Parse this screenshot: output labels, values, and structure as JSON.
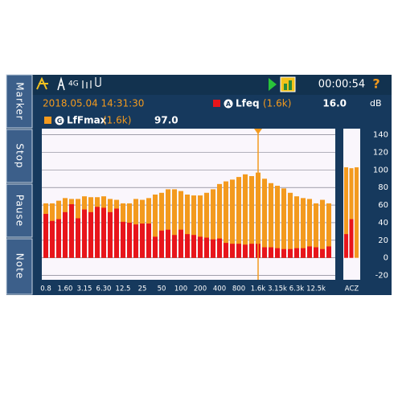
{
  "sidebar": {
    "buttons": [
      "Marker",
      "Stop",
      "Pause",
      "Note"
    ]
  },
  "status": {
    "network": "4G",
    "elapsed": "00:00:54",
    "help": "?"
  },
  "readout": {
    "datetime": "2018.05.04 14:31:30",
    "rows": [
      {
        "weighting": "A",
        "name": "Lfeq",
        "band": "(1.6k)",
        "value": "16.0",
        "unit": "dB"
      },
      {
        "weighting": "G",
        "name": "LfFmax",
        "band": "(1.6k)",
        "value": "97.0"
      }
    ]
  },
  "chart_data": [
    {
      "type": "bar",
      "cursor": "1.6k",
      "categories": [
        "0.8",
        null,
        null,
        "1.60",
        null,
        null,
        "3.15",
        null,
        null,
        "6.30",
        null,
        null,
        "12.5",
        null,
        null,
        "25",
        null,
        null,
        "50",
        null,
        null,
        "100",
        null,
        null,
        "200",
        null,
        null,
        "400",
        null,
        null,
        "800",
        null,
        null,
        "1.6k",
        null,
        null,
        "3.15k",
        null,
        null,
        "6.3k",
        null,
        null,
        "12.5k",
        null,
        null
      ],
      "series": [
        {
          "name": "LfFmax",
          "color": "#f39a1e",
          "values": [
            62,
            62,
            65,
            68,
            67,
            67,
            70,
            69,
            69,
            70,
            67,
            66,
            62,
            62,
            67,
            66,
            68,
            72,
            74,
            78,
            78,
            76,
            72,
            71,
            71,
            74,
            78,
            84,
            87,
            89,
            92,
            95,
            93,
            97,
            90,
            85,
            82,
            79,
            74,
            70,
            68,
            67,
            62,
            66,
            62
          ]
        },
        {
          "name": "Lfeq",
          "color": "#e8151b",
          "values": [
            50,
            42,
            44,
            52,
            61,
            45,
            55,
            52,
            58,
            57,
            52,
            56,
            41,
            40,
            38,
            39,
            39,
            24,
            31,
            32,
            26,
            32,
            27,
            26,
            24,
            23,
            21,
            22,
            17,
            16,
            16,
            15,
            16,
            16,
            12,
            12,
            11,
            10,
            10,
            11,
            11,
            13,
            12,
            10,
            13
          ]
        }
      ],
      "ylim": [
        -25,
        147
      ],
      "yticks": [
        140,
        120,
        100,
        80,
        60,
        40,
        20,
        0,
        -20
      ],
      "grid": true
    },
    {
      "type": "bar",
      "x_label": "ACZ",
      "categories": [
        null,
        null,
        null
      ],
      "series": [
        {
          "name": "LfFmax",
          "color": "#f39a1e",
          "values": [
            103,
            102,
            103
          ]
        },
        {
          "name": "Lfeq",
          "color": "#e8151b",
          "values": [
            27,
            44,
            null
          ]
        }
      ],
      "ylim": [
        -25,
        147
      ]
    }
  ]
}
